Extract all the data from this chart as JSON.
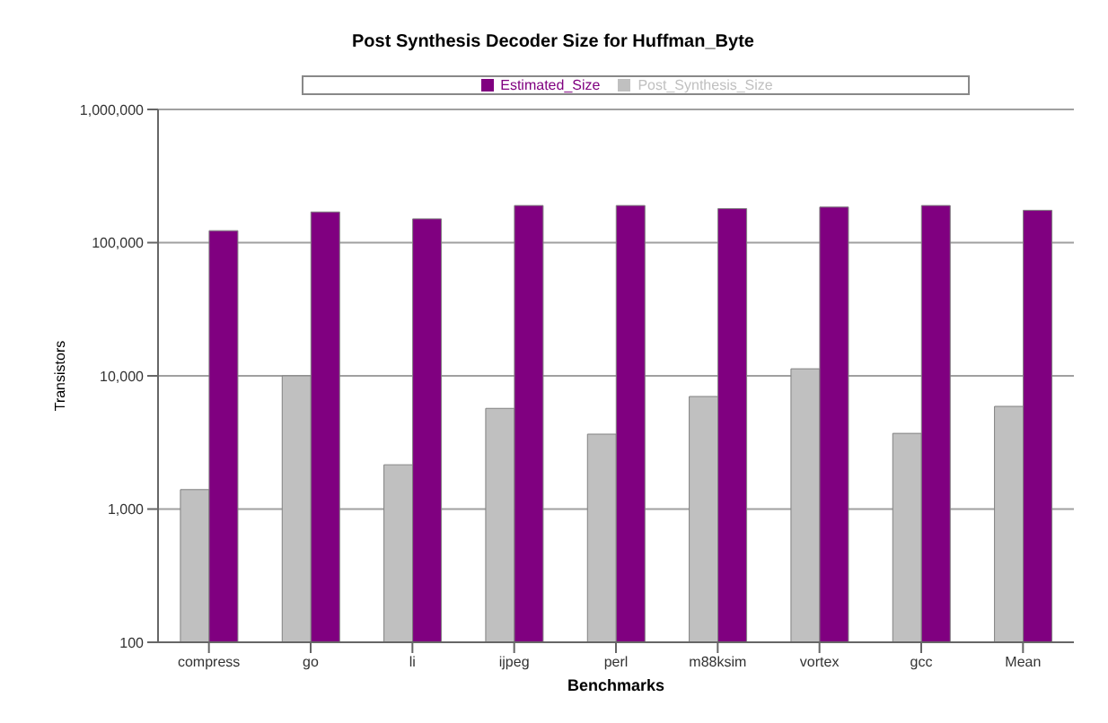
{
  "chart_data": {
    "type": "bar",
    "title": "Post Synthesis Decoder Size for Huffman_Byte",
    "xlabel": "Benchmarks",
    "ylabel": "Transistors",
    "categories": [
      "compress",
      "go",
      "li",
      "ijpeg",
      "perl",
      "m88ksim",
      "vortex",
      "gcc",
      "Mean"
    ],
    "series": [
      {
        "name": "Post_Synthesis_Size",
        "color": "#c0c0c0",
        "values": [
          1400,
          10000,
          2150,
          5700,
          3650,
          7000,
          11300,
          3700,
          5900
        ]
      },
      {
        "name": "Estimated_Size",
        "color": "#800080",
        "values": [
          123000,
          170000,
          151000,
          190000,
          190000,
          180000,
          185000,
          190000,
          175000
        ]
      }
    ],
    "log": true,
    "ylim": [
      100,
      1000000
    ],
    "yticks": [
      {
        "value": 100,
        "label": "100"
      },
      {
        "value": 1000,
        "label": "1,000"
      },
      {
        "value": 10000,
        "label": "10,000"
      },
      {
        "value": 100000,
        "label": "100,000"
      },
      {
        "value": 1000000,
        "label": "1,000,000"
      }
    ],
    "grid": "y",
    "legend": "top"
  }
}
